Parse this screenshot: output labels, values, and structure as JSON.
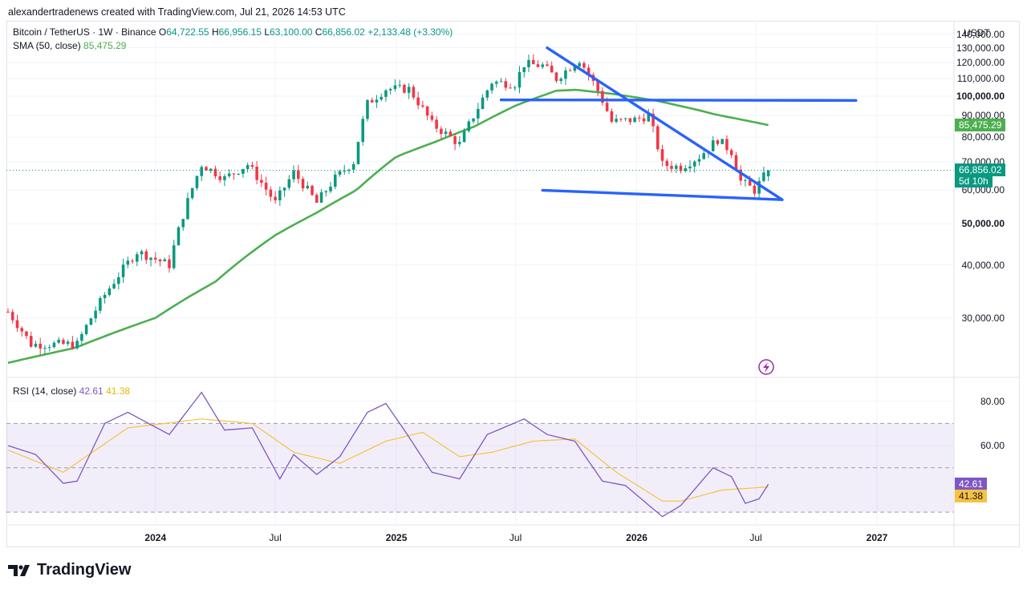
{
  "header": {
    "attribution": "alexandertradenews created with TradingView.com, Jul 21, 2026 14:53 UTC"
  },
  "legend": {
    "symbol": "Bitcoin / TetherUS · 1W · Binance",
    "open_label": "O",
    "open": "64,722.55",
    "high_label": "H",
    "high": "66,956.15",
    "low_label": "L",
    "low": "63,100.00",
    "close_label": "C",
    "close": "66,856.02",
    "change": "+2,133.48 (+3.30%)",
    "sma_label": "SMA (50, close)",
    "sma_value": "85,475.29"
  },
  "rsi_legend": {
    "label": "RSI (14, close)",
    "rsi": "42.61",
    "ma": "41.38"
  },
  "price_axis": {
    "currency": "USDT",
    "labels": [
      "140,000.00",
      "130,000.00",
      "120,000.00",
      "110,000.00",
      "100,000.00",
      "90,000.00",
      "80,000.00",
      "70,000.00",
      "60,000.00",
      "50,000.00",
      "40,000.00",
      "30,000.00"
    ],
    "bold_labels": [
      "100,000.00",
      "50,000.00"
    ],
    "sma_tag": "85,475.29",
    "price_tag": "66,856.02",
    "countdown_tag": "5d 10h"
  },
  "rsi_axis": {
    "labels": [
      "80.00",
      "60.00"
    ],
    "rsi_tag": "42.61",
    "ma_tag": "41.38"
  },
  "time_axis": {
    "labels": [
      "2024",
      "Jul",
      "2025",
      "Jul",
      "2026",
      "Jul",
      "2027"
    ],
    "bold_labels": [
      "2024",
      "2025",
      "2026",
      "2027"
    ]
  },
  "brand": {
    "name": "TradingView"
  },
  "colors": {
    "up": "#089981",
    "down": "#f23645",
    "sma": "#4caf50",
    "rsi": "#7e57c2",
    "rsi_ma": "#f5c242",
    "trendline": "#2962ff"
  },
  "chart_data": {
    "type": "candlestick",
    "interval": "1W",
    "symbol": "BTCUSDT",
    "price_range": [
      22000,
      146000
    ],
    "time_range": [
      "2023-05-22",
      "2026-12-31"
    ],
    "sma50_points": [
      [
        "2023-05-22",
        23500
      ],
      [
        "2023-09-01",
        25500
      ],
      [
        "2024-01-01",
        30000
      ],
      [
        "2024-04-01",
        36500
      ],
      [
        "2024-07-01",
        47000
      ],
      [
        "2024-09-01",
        53000
      ],
      [
        "2024-11-01",
        60000
      ],
      [
        "2025-01-01",
        72000
      ],
      [
        "2025-03-01",
        78000
      ],
      [
        "2025-05-01",
        85000
      ],
      [
        "2025-07-01",
        95000
      ],
      [
        "2025-09-01",
        103000
      ],
      [
        "2025-10-01",
        103500
      ],
      [
        "2025-12-01",
        101000
      ],
      [
        "2026-02-01",
        97500
      ],
      [
        "2026-04-01",
        93000
      ],
      [
        "2026-05-01",
        90500
      ],
      [
        "2026-07-20",
        85475
      ]
    ],
    "price_anchors": [
      [
        "2023-05-22",
        31000
      ],
      [
        "2023-06-26",
        26000
      ],
      [
        "2023-09-04",
        26000
      ],
      [
        "2023-10-16",
        34000
      ],
      [
        "2023-12-04",
        43000
      ],
      [
        "2024-01-22",
        40000
      ],
      [
        "2024-03-11",
        69000
      ],
      [
        "2024-04-15",
        64000
      ],
      [
        "2024-05-20",
        69000
      ],
      [
        "2024-07-01",
        56000
      ],
      [
        "2024-07-29",
        66000
      ],
      [
        "2024-09-02",
        56000
      ],
      [
        "2024-09-30",
        64000
      ],
      [
        "2024-10-28",
        70000
      ],
      [
        "2024-11-18",
        96000
      ],
      [
        "2024-12-16",
        104000
      ],
      [
        "2025-01-20",
        104000
      ],
      [
        "2025-02-24",
        86000
      ],
      [
        "2025-04-07",
        77000
      ],
      [
        "2025-05-05",
        94000
      ],
      [
        "2025-05-26",
        108000
      ],
      [
        "2025-06-30",
        107000
      ],
      [
        "2025-07-14",
        119000
      ],
      [
        "2025-08-11",
        118000
      ],
      [
        "2025-09-01",
        110000
      ],
      [
        "2025-10-06",
        122000
      ],
      [
        "2025-11-03",
        103000
      ],
      [
        "2025-11-24",
        87000
      ],
      [
        "2025-12-29",
        88000
      ],
      [
        "2026-01-19",
        90000
      ],
      [
        "2026-02-09",
        69000
      ],
      [
        "2026-03-09",
        68000
      ],
      [
        "2026-04-06",
        72000
      ],
      [
        "2026-05-04",
        79000
      ],
      [
        "2026-05-25",
        74000
      ],
      [
        "2026-06-08",
        63000
      ],
      [
        "2026-06-29",
        60000
      ],
      [
        "2026-07-20",
        66856
      ]
    ],
    "rsi_anchors": [
      [
        "2023-05-22",
        60
      ],
      [
        "2023-07-03",
        56
      ],
      [
        "2023-08-14",
        43
      ],
      [
        "2023-09-04",
        44
      ],
      [
        "2023-10-16",
        70
      ],
      [
        "2023-11-20",
        75
      ],
      [
        "2024-01-22",
        65
      ],
      [
        "2024-03-11",
        84
      ],
      [
        "2024-04-15",
        67
      ],
      [
        "2024-05-27",
        68
      ],
      [
        "2024-07-08",
        45
      ],
      [
        "2024-07-29",
        56
      ],
      [
        "2024-09-02",
        47
      ],
      [
        "2024-10-07",
        55
      ],
      [
        "2024-11-18",
        75
      ],
      [
        "2024-12-16",
        79
      ],
      [
        "2025-01-13",
        67
      ],
      [
        "2025-02-24",
        48
      ],
      [
        "2025-04-07",
        45
      ],
      [
        "2025-05-19",
        65
      ],
      [
        "2025-07-14",
        72
      ],
      [
        "2025-08-18",
        65
      ],
      [
        "2025-09-29",
        62
      ],
      [
        "2025-11-10",
        44
      ],
      [
        "2025-12-15",
        42
      ],
      [
        "2026-02-09",
        28
      ],
      [
        "2026-03-09",
        33
      ],
      [
        "2026-04-27",
        50
      ],
      [
        "2026-05-25",
        46
      ],
      [
        "2026-06-15",
        34
      ],
      [
        "2026-07-06",
        36
      ],
      [
        "2026-07-20",
        42.61
      ]
    ],
    "rsi_ma_anchors": [
      [
        "2023-05-22",
        58
      ],
      [
        "2023-08-14",
        48
      ],
      [
        "2023-11-20",
        68
      ],
      [
        "2024-03-11",
        72
      ],
      [
        "2024-05-27",
        70
      ],
      [
        "2024-07-29",
        57
      ],
      [
        "2024-10-07",
        52
      ],
      [
        "2024-12-16",
        62
      ],
      [
        "2025-02-10",
        66
      ],
      [
        "2025-04-07",
        55
      ],
      [
        "2025-05-26",
        57
      ],
      [
        "2025-07-28",
        62
      ],
      [
        "2025-09-29",
        63
      ],
      [
        "2025-12-01",
        48
      ],
      [
        "2026-02-09",
        35
      ],
      [
        "2026-03-09",
        35
      ],
      [
        "2026-05-11",
        40
      ],
      [
        "2026-07-20",
        41.38
      ]
    ],
    "rsi_range": [
      25,
      90
    ],
    "rsi_band": [
      30,
      70
    ],
    "rsi_levels": [
      50
    ],
    "trendlines": [
      {
        "from": [
          "2025-08-18",
          130000
        ],
        "to": [
          "2026-08-10",
          57000
        ]
      },
      {
        "from": [
          "2025-06-09",
          98000
        ],
        "to": [
          "2026-11-30",
          97700
        ]
      },
      {
        "from": [
          "2025-08-11",
          60000
        ],
        "to": [
          "2026-08-10",
          57000
        ]
      }
    ]
  }
}
